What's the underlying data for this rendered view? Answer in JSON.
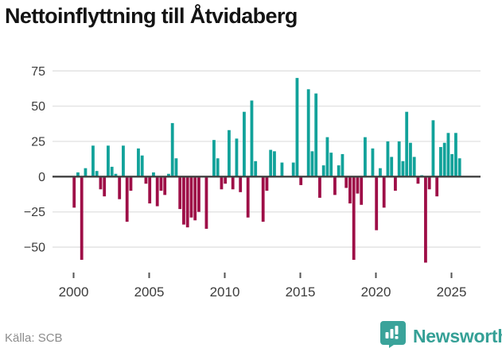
{
  "title": "Nettoinflyttning till Åtvidaberg",
  "source": "Källa: SCB",
  "brand": {
    "name": "Newsworthy",
    "logo_icon": "bar-chart-speech-bubble",
    "color": "#35a096"
  },
  "chart_data": {
    "type": "bar",
    "title": "Nettoinflyttning till Åtvidaberg",
    "frequency": "quarterly",
    "start_period": "2000Q1",
    "end_period": "2025Q3",
    "grid": "horizontal",
    "legend": "none",
    "ylim": [
      -65,
      80
    ],
    "colors": {
      "positive": "#11a29a",
      "negative": "#9e0e47",
      "zero_line": "#404040",
      "grid_line": "#e3e3e3",
      "axis_text": "#3c3c3c"
    },
    "y_ticks": [
      {
        "value": 75,
        "label": "75"
      },
      {
        "value": 50,
        "label": "50"
      },
      {
        "value": 25,
        "label": "25"
      },
      {
        "value": 0,
        "label": "0"
      },
      {
        "value": -25,
        "label": "−25"
      },
      {
        "value": -50,
        "label": "−50"
      }
    ],
    "x_ticks": [
      {
        "at_index": 0,
        "label": "2000"
      },
      {
        "at_index": 20,
        "label": "2005"
      },
      {
        "at_index": 40,
        "label": "2010"
      },
      {
        "at_index": 60,
        "label": "2015"
      },
      {
        "at_index": 80,
        "label": "2020"
      },
      {
        "at_index": 100,
        "label": "2025"
      }
    ],
    "values": [
      -22,
      3,
      -59,
      6,
      0,
      22,
      4,
      -9,
      -14,
      22,
      7,
      2,
      -16,
      22,
      -32,
      -10,
      0,
      20,
      15,
      -5,
      -19,
      3,
      -21,
      -10,
      -13,
      2,
      38,
      13,
      -23,
      -34,
      -36,
      -29,
      -31,
      -25,
      0,
      -37,
      0,
      26,
      13,
      -9,
      -5,
      33,
      -9,
      27,
      -11,
      46,
      -29,
      54,
      11,
      0,
      -32,
      -10,
      19,
      18,
      0,
      10,
      0,
      0,
      10,
      70,
      -6,
      0,
      62,
      18,
      59,
      -15,
      8,
      28,
      17,
      -13,
      8,
      16,
      -8,
      -19,
      -59,
      -12,
      -20,
      28,
      0,
      20,
      -38,
      6,
      -22,
      25,
      14,
      -10,
      25,
      11,
      46,
      24,
      14,
      -5,
      1,
      -61,
      -9,
      40,
      -14,
      21,
      24,
      31,
      16,
      31,
      13
    ]
  }
}
